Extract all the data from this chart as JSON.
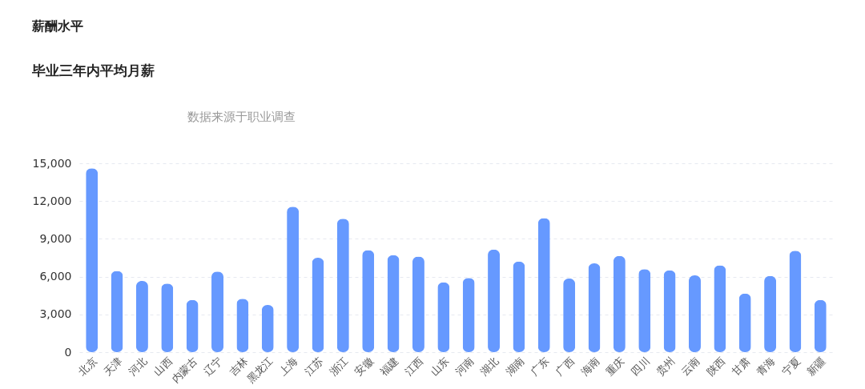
{
  "chart_data": {
    "type": "bar",
    "title": "薪酬水平",
    "subtitle": "毕业三年内平均月薪",
    "annotations": [
      "数据来源于职业调查"
    ],
    "categories": [
      "北京",
      "天津",
      "河北",
      "山西",
      "内蒙古",
      "辽宁",
      "吉林",
      "黑龙江",
      "上海",
      "江苏",
      "浙江",
      "安徽",
      "福建",
      "江西",
      "山东",
      "河南",
      "湖北",
      "湖南",
      "广东",
      "广西",
      "海南",
      "重庆",
      "四川",
      "贵州",
      "云南",
      "陕西",
      "甘肃",
      "青海",
      "宁夏",
      "新疆"
    ],
    "values": [
      14600,
      6450,
      5650,
      5450,
      4150,
      6400,
      4250,
      3750,
      11550,
      7500,
      10600,
      8100,
      7700,
      7600,
      5550,
      5900,
      8150,
      7200,
      10650,
      5850,
      7050,
      7650,
      6600,
      6500,
      6100,
      6900,
      4650,
      6050,
      8050,
      4150
    ],
    "color": "#6699ff",
    "ylim": [
      0,
      15000
    ],
    "yticks": [
      0,
      {
        "value": 3000,
        "label": "3,000"
      },
      {
        "value": 6000,
        "label": "6,000"
      },
      {
        "value": 9000,
        "label": "9,000"
      },
      {
        "value": 12000,
        "label": "12,000"
      },
      {
        "value": 15000,
        "label": "15,000"
      }
    ],
    "grid": "y"
  }
}
